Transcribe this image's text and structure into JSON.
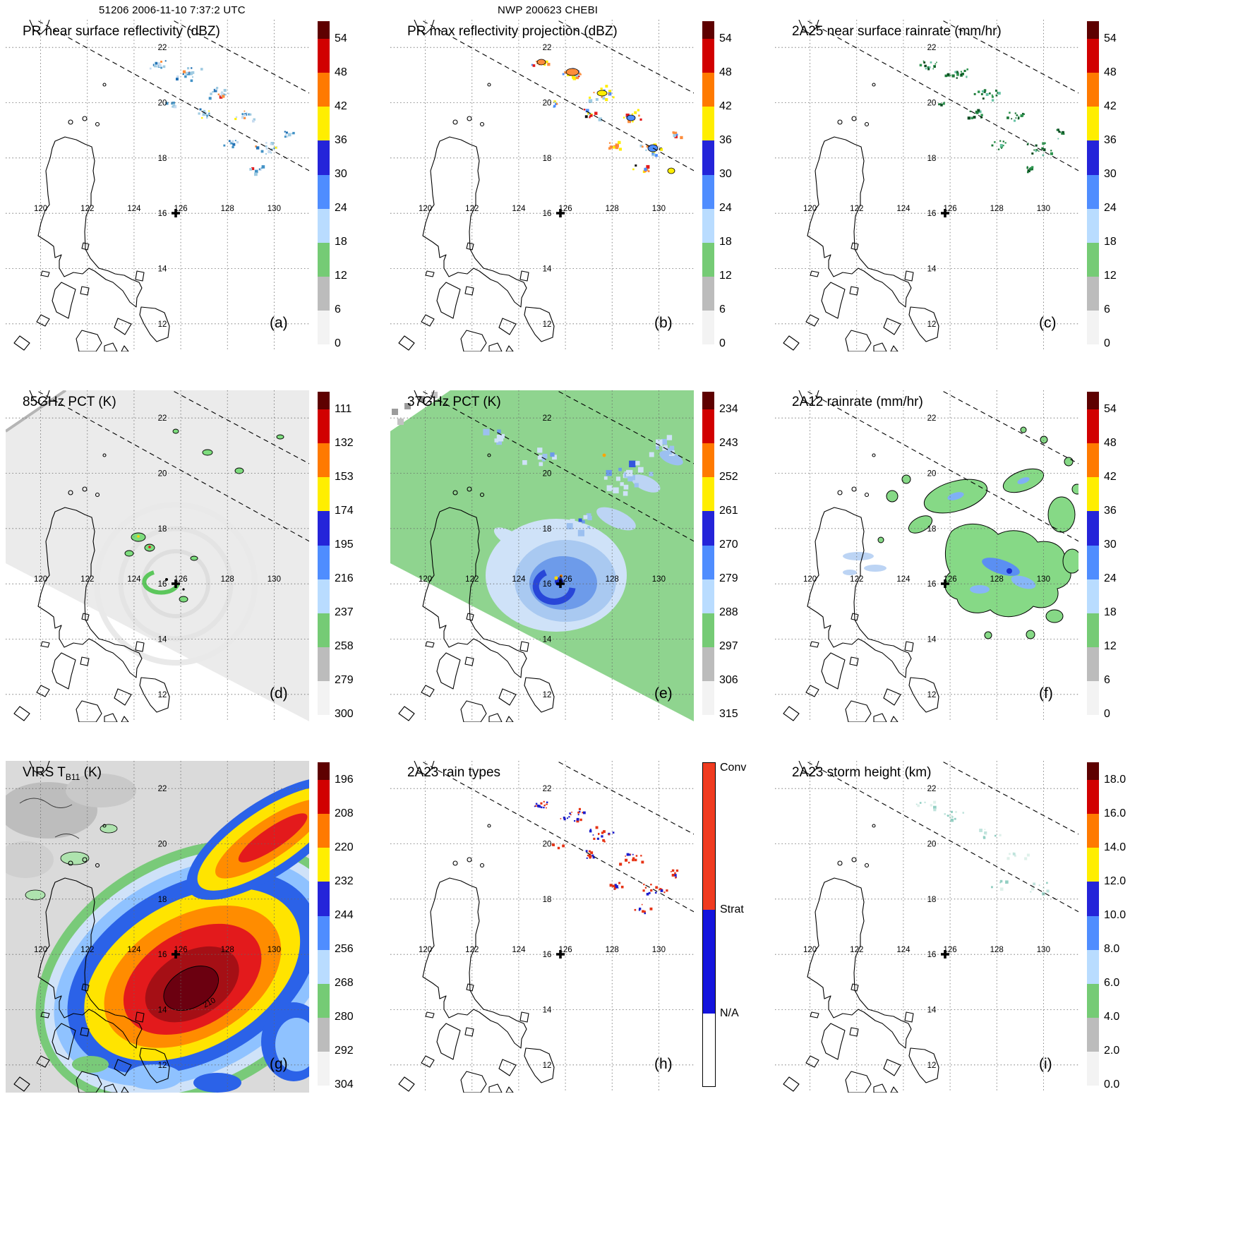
{
  "header": {
    "left": "51206 2006-11-10 7:37:2 UTC",
    "center": "NWP 200623 CHEBI"
  },
  "axes": {
    "lon_ticks": [
      "120",
      "122",
      "124",
      "126",
      "128",
      "130"
    ],
    "lat_ticks": [
      "22",
      "20",
      "18",
      "16",
      "14",
      "12"
    ]
  },
  "panels": [
    {
      "id": "a",
      "title_pre": "PR near surface reflectivity (dBZ)",
      "title_sub": "",
      "title_post": "",
      "letter": "(a)",
      "colorbar": "dbz"
    },
    {
      "id": "b",
      "title_pre": "PR max reflectivity projection (dBZ)",
      "title_sub": "",
      "title_post": "",
      "letter": "(b)",
      "colorbar": "dbz"
    },
    {
      "id": "c",
      "title_pre": "2A25 near surface rainrate (mm/hr)",
      "title_sub": "",
      "title_post": "",
      "letter": "(c)",
      "colorbar": "dbz"
    },
    {
      "id": "d",
      "title_pre": "85GHz PCT (K)",
      "title_sub": "",
      "title_post": "",
      "letter": "(d)",
      "colorbar": "pct85"
    },
    {
      "id": "e",
      "title_pre": "37GHz PCT (K)",
      "title_sub": "",
      "title_post": "",
      "letter": "(e)",
      "colorbar": "pct37"
    },
    {
      "id": "f",
      "title_pre": "2A12 rainrate (mm/hr)",
      "title_sub": "",
      "title_post": "",
      "letter": "(f)",
      "colorbar": "dbz"
    },
    {
      "id": "g",
      "title_pre": "VIRS T",
      "title_sub": "B11",
      "title_post": " (K)",
      "letter": "(g)",
      "colorbar": "virs",
      "contour_label": "210"
    },
    {
      "id": "h",
      "title_pre": "2A23 rain types",
      "title_sub": "",
      "title_post": "",
      "letter": "(h)",
      "colorbar": "raintype"
    },
    {
      "id": "i",
      "title_pre": "2A23 storm height (km)",
      "title_sub": "",
      "title_post": "",
      "letter": "(i)",
      "colorbar": "height"
    }
  ],
  "palettes": {
    "rainbow": [
      {
        "color": "#5e0000",
        "span": 0.055
      },
      {
        "color": "#d10000",
        "span": 0.105
      },
      {
        "color": "#ff7a00",
        "span": 0.105
      },
      {
        "color": "#ffee00",
        "span": 0.105
      },
      {
        "color": "#2424d9",
        "span": 0.105
      },
      {
        "color": "#4f8dff",
        "span": 0.105
      },
      {
        "color": "#b9dcff",
        "span": 0.105
      },
      {
        "color": "#75cb75",
        "span": 0.105
      },
      {
        "color": "#bcbcbc",
        "span": 0.105
      },
      {
        "color": "#f3f3f3",
        "span": 0.105
      }
    ],
    "raintype": [
      {
        "color": "#f03b20",
        "span": 0.455
      },
      {
        "color": "#1414dd",
        "span": 0.32
      },
      {
        "color": "#ffffff",
        "span": 0.225
      }
    ]
  },
  "colorbars": {
    "dbz": {
      "palette": "rainbow",
      "ticks": [
        "54",
        "48",
        "42",
        "36",
        "30",
        "24",
        "18",
        "12",
        "6",
        "0"
      ]
    },
    "pct85": {
      "palette": "rainbow",
      "ticks": [
        "111",
        "132",
        "153",
        "174",
        "195",
        "216",
        "237",
        "258",
        "279",
        "300"
      ]
    },
    "pct37": {
      "palette": "rainbow",
      "ticks": [
        "234",
        "243",
        "252",
        "261",
        "270",
        "279",
        "288",
        "297",
        "306",
        "315"
      ]
    },
    "virs": {
      "palette": "rainbow",
      "ticks": [
        "196",
        "208",
        "220",
        "232",
        "244",
        "256",
        "268",
        "280",
        "292",
        "304"
      ]
    },
    "height": {
      "palette": "rainbow",
      "ticks": [
        "18.0",
        "16.0",
        "14.0",
        "12.0",
        "10.0",
        "8.0",
        "6.0",
        "4.0",
        "2.0",
        "0.0"
      ]
    },
    "raintype": {
      "palette": "raintype",
      "ticks": [
        "Conv",
        "Strat",
        "N/A"
      ],
      "tick_pos": [
        0.015,
        0.455,
        0.775
      ],
      "border": true
    }
  },
  "chart_data": {
    "type": "heatmap",
    "title": "TRMM orbit 51206 overpass of NWP 200623 CHEBI, 2006-11-10 7:37:2 UTC",
    "layout": "3x3 map panels, vertical colorbar right of each panel",
    "map_extent": {
      "lon_min": 118.5,
      "lon_max": 131.5,
      "lat_min": 11,
      "lat_max": 23
    },
    "grid": {
      "lon_ticks": [
        120,
        122,
        124,
        126,
        128,
        130
      ],
      "lat_ticks": [
        12,
        14,
        16,
        18,
        20,
        22
      ],
      "style": "dotted"
    },
    "storm_center_marker": {
      "lon": 125.8,
      "lat": 16.0
    },
    "panels": [
      {
        "label": "(a)",
        "title": "PR near surface reflectivity (dBZ)",
        "units": "dBZ",
        "colorbar_ticks": [
          54,
          48,
          42,
          36,
          30,
          24,
          18,
          12,
          6,
          0
        ]
      },
      {
        "label": "(b)",
        "title": "PR max reflectivity projection (dBZ)",
        "units": "dBZ",
        "colorbar_ticks": [
          54,
          48,
          42,
          36,
          30,
          24,
          18,
          12,
          6,
          0
        ]
      },
      {
        "label": "(c)",
        "title": "2A25 near surface rainrate (mm/hr)",
        "units": "mm/hr",
        "colorbar_ticks": [
          54,
          48,
          42,
          36,
          30,
          24,
          18,
          12,
          6,
          0
        ]
      },
      {
        "label": "(d)",
        "title": "85GHz PCT (K)",
        "units": "K",
        "colorbar_ticks": [
          111,
          132,
          153,
          174,
          195,
          216,
          237,
          258,
          279,
          300
        ]
      },
      {
        "label": "(e)",
        "title": "37GHz PCT (K)",
        "units": "K",
        "colorbar_ticks": [
          234,
          243,
          252,
          261,
          270,
          279,
          288,
          297,
          306,
          315
        ]
      },
      {
        "label": "(f)",
        "title": "2A12 rainrate (mm/hr)",
        "units": "mm/hr",
        "colorbar_ticks": [
          54,
          48,
          42,
          36,
          30,
          24,
          18,
          12,
          6,
          0
        ]
      },
      {
        "label": "(g)",
        "title": "VIRS TB11 (K)",
        "units": "K",
        "colorbar_ticks": [
          196,
          208,
          220,
          232,
          244,
          256,
          268,
          280,
          292,
          304
        ],
        "contour_label": 210
      },
      {
        "label": "(h)",
        "title": "2A23 rain types",
        "units": "category",
        "colorbar_ticks": [
          "Conv",
          "Strat",
          "N/A"
        ]
      },
      {
        "label": "(i)",
        "title": "2A23 storm height (km)",
        "units": "km",
        "colorbar_ticks": [
          18.0,
          16.0,
          14.0,
          12.0,
          10.0,
          8.0,
          6.0,
          4.0,
          2.0,
          0.0
        ]
      }
    ]
  }
}
